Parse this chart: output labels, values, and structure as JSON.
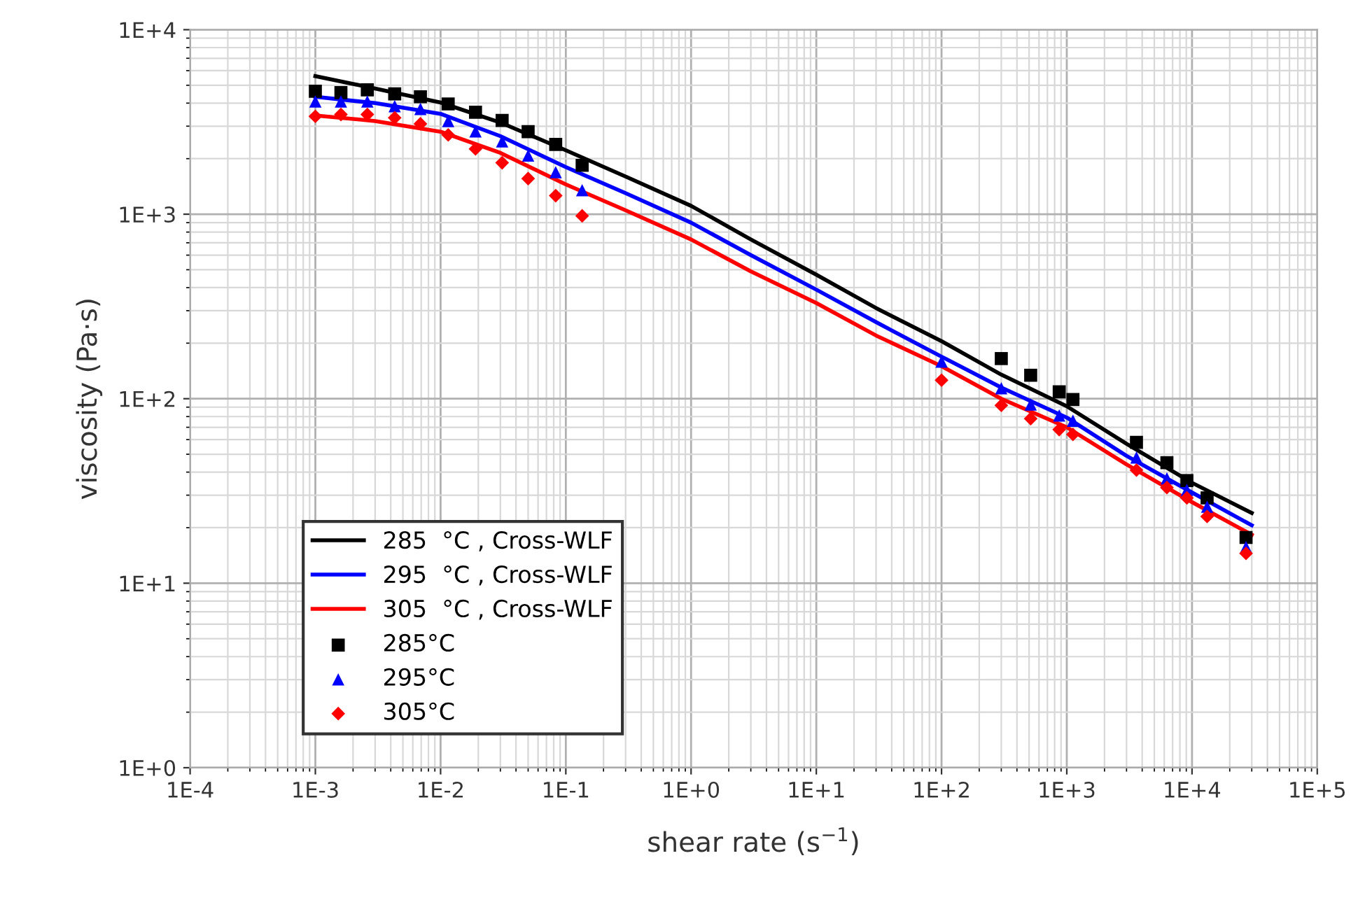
{
  "chart_data": {
    "type": "line",
    "xlabel": "shear rate (s$^{−1}$)",
    "ylabel": "viscosity (Pa·s)",
    "log": "xy",
    "grid": true,
    "legend": "bottom left",
    "xlim": [
      0.0001,
      100000
    ],
    "ylim": [
      1,
      10000
    ],
    "xticks": [
      {
        "value": 0.0001,
        "label": "1E-4"
      },
      {
        "value": 0.001,
        "label": "1E-3"
      },
      {
        "value": 0.01,
        "label": "1E-2"
      },
      {
        "value": 0.1,
        "label": "1E-1"
      },
      {
        "value": 1,
        "label": "1E+0"
      },
      {
        "value": 10,
        "label": "1E+1"
      },
      {
        "value": 100,
        "label": "1E+2"
      },
      {
        "value": 1000,
        "label": "1E+3"
      },
      {
        "value": 10000,
        "label": "1E+4"
      },
      {
        "value": 100000,
        "label": "1E+5"
      }
    ],
    "yticks": [
      {
        "value": 1,
        "label": "1E+0"
      },
      {
        "value": 10,
        "label": "1E+1"
      },
      {
        "value": 100,
        "label": "1E+2"
      },
      {
        "value": 1000,
        "label": "1E+3"
      },
      {
        "value": 10000,
        "label": "1E+4"
      }
    ],
    "series": [
      {
        "name": "285  °C , Cross-WLF",
        "marker": "none",
        "color": "#000000",
        "x": [
          0.001,
          0.003,
          0.01,
          0.03,
          0.1,
          0.3,
          1,
          3,
          10,
          30,
          100,
          300,
          1000,
          3000,
          10000,
          30000
        ],
        "values": [
          5600,
          4800,
          4030,
          3140,
          2220,
          1600,
          1110,
          730,
          470,
          310,
          205,
          135,
          91,
          57,
          35,
          24
        ]
      },
      {
        "name": "295  °C , Cross-WLF",
        "marker": "none",
        "color": "#0000ff",
        "x": [
          0.001,
          0.003,
          0.01,
          0.03,
          0.1,
          0.3,
          1,
          3,
          10,
          30,
          100,
          300,
          1000,
          3000,
          10000,
          30000
        ],
        "values": [
          4330,
          4000,
          3500,
          2650,
          1800,
          1300,
          900,
          600,
          390,
          260,
          169,
          115,
          79,
          49,
          31,
          20.6
        ]
      },
      {
        "name": "305  °C , Cross-WLF",
        "marker": "none",
        "color": "#ff0000",
        "x": [
          0.001,
          0.003,
          0.01,
          0.03,
          0.1,
          0.3,
          1,
          3,
          10,
          30,
          100,
          300,
          1000,
          3000,
          10000,
          30000
        ],
        "values": [
          3430,
          3200,
          2800,
          2150,
          1450,
          1050,
          730,
          490,
          330,
          220,
          150,
          100,
          70,
          44,
          27.5,
          18.3
        ]
      },
      {
        "name": "285°C",
        "type": "scatter",
        "marker": "square",
        "color": "#000000",
        "x": [
          0.001,
          0.0016,
          0.0026,
          0.0043,
          0.0069,
          0.0115,
          0.019,
          0.031,
          0.05,
          0.083,
          0.135,
          300,
          515,
          870,
          1120,
          3600,
          6300,
          9100,
          13200,
          27000
        ],
        "values": [
          4640,
          4560,
          4720,
          4490,
          4330,
          3960,
          3570,
          3220,
          2800,
          2390,
          1840,
          165,
          134,
          109,
          99,
          58,
          45,
          36,
          29,
          17.7
        ]
      },
      {
        "name": "295°C",
        "type": "scatter",
        "marker": "triangle",
        "color": "#0000ff",
        "x": [
          0.001,
          0.0016,
          0.0026,
          0.0043,
          0.0069,
          0.0115,
          0.019,
          0.031,
          0.05,
          0.083,
          0.135,
          100,
          300,
          515,
          870,
          1120,
          3600,
          6300,
          9100,
          13200,
          27000
        ],
        "values": [
          4080,
          4080,
          4080,
          3850,
          3720,
          3200,
          2810,
          2480,
          2080,
          1690,
          1350,
          159,
          114,
          93,
          81,
          76,
          48,
          37,
          32,
          26,
          15.7
        ]
      },
      {
        "name": "305°C",
        "type": "scatter",
        "marker": "diamond",
        "color": "#ff0000",
        "x": [
          0.001,
          0.0016,
          0.0026,
          0.0043,
          0.0069,
          0.0115,
          0.019,
          0.031,
          0.05,
          0.083,
          0.135,
          100,
          300,
          515,
          870,
          1120,
          3600,
          6300,
          9100,
          13200,
          27000
        ],
        "values": [
          3390,
          3470,
          3470,
          3330,
          3090,
          2690,
          2260,
          1900,
          1560,
          1260,
          980,
          126,
          92,
          78,
          68,
          64,
          41,
          33,
          29,
          23,
          14.5
        ]
      }
    ]
  }
}
